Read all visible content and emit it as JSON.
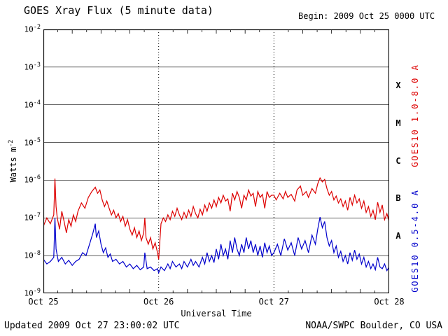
{
  "header": {
    "title": "GOES Xray Flux (5 minute data)",
    "begin": "Begin: 2009 Oct 25 0000 UTC"
  },
  "labels": {
    "ylabel_base": "Watts m",
    "ylabel_exp": "-2"
  },
  "footer": {
    "updated": "Updated 2009 Oct 27 23:00:02 UTC",
    "credit": "NOAA/SWPC Boulder, CO USA"
  },
  "chart_data": {
    "type": "line",
    "title": "GOES Xray Flux (5 minute data)",
    "xlabel": "Universal Time",
    "ylabel": "Watts m-2",
    "yscale": "log",
    "ylim": [
      1e-09,
      0.01
    ],
    "x_range_days": 3,
    "begin_time": "2009 Oct 25 0000 UTC",
    "grid": {
      "horizontal": "solid-per-decade",
      "vertical": "dotted-per-day"
    },
    "legend_position": "right-rotated",
    "xticks": [
      {
        "t": 0,
        "label": "Oct 25"
      },
      {
        "t": 1,
        "label": "Oct 26"
      },
      {
        "t": 2,
        "label": "Oct 27"
      },
      {
        "t": 3,
        "label": "Oct 28"
      }
    ],
    "ytick_exponents": [
      -2,
      -3,
      -4,
      -5,
      -6,
      -7,
      -8,
      -9
    ],
    "flare_classes": [
      {
        "label": "X",
        "band_watts": [
          0.0001,
          0.001
        ]
      },
      {
        "label": "M",
        "band_watts": [
          1e-05,
          0.0001
        ]
      },
      {
        "label": "C",
        "band_watts": [
          1e-06,
          1e-05
        ]
      },
      {
        "label": "B",
        "band_watts": [
          1e-07,
          1e-06
        ]
      },
      {
        "label": "A",
        "band_watts": [
          1e-08,
          1e-07
        ]
      }
    ],
    "series": [
      {
        "name": "GOES10 1.0-8.0 A",
        "color": "#dd0000",
        "points": [
          [
            0.0,
            6e-08
          ],
          [
            0.03,
            1e-07
          ],
          [
            0.06,
            7e-08
          ],
          [
            0.09,
            1.2e-07
          ],
          [
            0.1,
            1.1e-06
          ],
          [
            0.11,
            2e-07
          ],
          [
            0.12,
            1e-07
          ],
          [
            0.14,
            5e-08
          ],
          [
            0.16,
            1.5e-07
          ],
          [
            0.18,
            8e-08
          ],
          [
            0.2,
            4e-08
          ],
          [
            0.22,
            9e-08
          ],
          [
            0.24,
            6e-08
          ],
          [
            0.26,
            1.2e-07
          ],
          [
            0.28,
            8e-08
          ],
          [
            0.3,
            1.5e-07
          ],
          [
            0.33,
            2.5e-07
          ],
          [
            0.36,
            1.8e-07
          ],
          [
            0.39,
            3.5e-07
          ],
          [
            0.42,
            5e-07
          ],
          [
            0.45,
            6.5e-07
          ],
          [
            0.47,
            4.5e-07
          ],
          [
            0.49,
            5.5e-07
          ],
          [
            0.51,
            3e-07
          ],
          [
            0.53,
            2e-07
          ],
          [
            0.55,
            2.8e-07
          ],
          [
            0.57,
            1.8e-07
          ],
          [
            0.59,
            1.2e-07
          ],
          [
            0.61,
            1.6e-07
          ],
          [
            0.63,
            1e-07
          ],
          [
            0.65,
            1.3e-07
          ],
          [
            0.67,
            8e-08
          ],
          [
            0.69,
            1.1e-07
          ],
          [
            0.71,
            6e-08
          ],
          [
            0.73,
            9e-08
          ],
          [
            0.75,
            5e-08
          ],
          [
            0.77,
            3.5e-08
          ],
          [
            0.79,
            5.5e-08
          ],
          [
            0.81,
            3e-08
          ],
          [
            0.83,
            4.5e-08
          ],
          [
            0.85,
            2.5e-08
          ],
          [
            0.87,
            4e-08
          ],
          [
            0.88,
            1e-07
          ],
          [
            0.89,
            3e-08
          ],
          [
            0.91,
            2e-08
          ],
          [
            0.93,
            3e-08
          ],
          [
            0.95,
            1.5e-08
          ],
          [
            0.97,
            2.2e-08
          ],
          [
            0.99,
            1.2e-08
          ],
          [
            1.0,
            8e-09
          ],
          [
            1.02,
            7e-08
          ],
          [
            1.04,
            1e-07
          ],
          [
            1.06,
            8e-08
          ],
          [
            1.08,
            1.2e-07
          ],
          [
            1.1,
            9e-08
          ],
          [
            1.12,
            1.5e-07
          ],
          [
            1.14,
            1.1e-07
          ],
          [
            1.16,
            1.8e-07
          ],
          [
            1.18,
            1.2e-07
          ],
          [
            1.2,
            9e-08
          ],
          [
            1.22,
            1.4e-07
          ],
          [
            1.24,
            1e-07
          ],
          [
            1.26,
            1.6e-07
          ],
          [
            1.28,
            1.1e-07
          ],
          [
            1.3,
            2e-07
          ],
          [
            1.32,
            1.3e-07
          ],
          [
            1.34,
            1e-07
          ],
          [
            1.36,
            1.7e-07
          ],
          [
            1.38,
            1.2e-07
          ],
          [
            1.4,
            2.2e-07
          ],
          [
            1.42,
            1.5e-07
          ],
          [
            1.44,
            2.5e-07
          ],
          [
            1.46,
            1.8e-07
          ],
          [
            1.48,
            3e-07
          ],
          [
            1.5,
            2e-07
          ],
          [
            1.52,
            3.5e-07
          ],
          [
            1.54,
            2.5e-07
          ],
          [
            1.56,
            4e-07
          ],
          [
            1.58,
            2.8e-07
          ],
          [
            1.6,
            3.2e-07
          ],
          [
            1.62,
            1.5e-07
          ],
          [
            1.64,
            4.5e-07
          ],
          [
            1.66,
            3e-07
          ],
          [
            1.68,
            5e-07
          ],
          [
            1.7,
            3.5e-07
          ],
          [
            1.72,
            1.8e-07
          ],
          [
            1.74,
            4e-07
          ],
          [
            1.76,
            3e-07
          ],
          [
            1.78,
            5.5e-07
          ],
          [
            1.8,
            3.8e-07
          ],
          [
            1.82,
            4.5e-07
          ],
          [
            1.84,
            2e-07
          ],
          [
            1.86,
            5e-07
          ],
          [
            1.88,
            3.5e-07
          ],
          [
            1.9,
            4.2e-07
          ],
          [
            1.92,
            1.8e-07
          ],
          [
            1.94,
            5e-07
          ],
          [
            1.96,
            3.5e-07
          ],
          [
            1.98,
            4e-07
          ],
          [
            2.0,
            4e-07
          ],
          [
            2.02,
            3e-07
          ],
          [
            2.05,
            4.5e-07
          ],
          [
            2.08,
            3.2e-07
          ],
          [
            2.1,
            5e-07
          ],
          [
            2.12,
            3.5e-07
          ],
          [
            2.15,
            4.2e-07
          ],
          [
            2.18,
            2.8e-07
          ],
          [
            2.2,
            5.5e-07
          ],
          [
            2.23,
            7e-07
          ],
          [
            2.25,
            4e-07
          ],
          [
            2.28,
            5e-07
          ],
          [
            2.3,
            3.5e-07
          ],
          [
            2.33,
            6e-07
          ],
          [
            2.36,
            4.5e-07
          ],
          [
            2.38,
            8e-07
          ],
          [
            2.4,
            1.15e-06
          ],
          [
            2.42,
            9e-07
          ],
          [
            2.44,
            1.05e-06
          ],
          [
            2.46,
            6e-07
          ],
          [
            2.48,
            4e-07
          ],
          [
            2.5,
            5e-07
          ],
          [
            2.52,
            3e-07
          ],
          [
            2.54,
            3.8e-07
          ],
          [
            2.56,
            2.5e-07
          ],
          [
            2.58,
            3.2e-07
          ],
          [
            2.6,
            2e-07
          ],
          [
            2.62,
            2.8e-07
          ],
          [
            2.64,
            1.6e-07
          ],
          [
            2.66,
            3.5e-07
          ],
          [
            2.68,
            2.2e-07
          ],
          [
            2.7,
            4e-07
          ],
          [
            2.72,
            2.5e-07
          ],
          [
            2.74,
            3.2e-07
          ],
          [
            2.76,
            1.8e-07
          ],
          [
            2.78,
            2.8e-07
          ],
          [
            2.8,
            1.4e-07
          ],
          [
            2.82,
            2e-07
          ],
          [
            2.84,
            1.1e-07
          ],
          [
            2.86,
            1.6e-07
          ],
          [
            2.88,
            9e-08
          ],
          [
            2.9,
            2.6e-07
          ],
          [
            2.92,
            1.4e-07
          ],
          [
            2.94,
            2.2e-07
          ],
          [
            2.96,
            9e-08
          ],
          [
            2.98,
            1.3e-07
          ],
          [
            3.0,
            8e-08
          ]
        ]
      },
      {
        "name": "GOES10 0.5-4.0 A",
        "color": "#0000cc",
        "points": [
          [
            0.0,
            8e-09
          ],
          [
            0.03,
            6e-09
          ],
          [
            0.06,
            7e-09
          ],
          [
            0.09,
            9e-09
          ],
          [
            0.1,
            1e-07
          ],
          [
            0.11,
            1.5e-08
          ],
          [
            0.13,
            7e-09
          ],
          [
            0.16,
            9e-09
          ],
          [
            0.19,
            6e-09
          ],
          [
            0.22,
            7.5e-09
          ],
          [
            0.25,
            5.5e-09
          ],
          [
            0.28,
            7e-09
          ],
          [
            0.31,
            8e-09
          ],
          [
            0.34,
            1.2e-08
          ],
          [
            0.37,
            1e-08
          ],
          [
            0.4,
            2e-08
          ],
          [
            0.43,
            4e-08
          ],
          [
            0.45,
            7e-08
          ],
          [
            0.46,
            3e-08
          ],
          [
            0.48,
            4.5e-08
          ],
          [
            0.5,
            2e-08
          ],
          [
            0.52,
            1.2e-08
          ],
          [
            0.54,
            1.6e-08
          ],
          [
            0.56,
            9e-09
          ],
          [
            0.58,
            1.1e-08
          ],
          [
            0.6,
            7e-09
          ],
          [
            0.63,
            8e-09
          ],
          [
            0.66,
            6e-09
          ],
          [
            0.69,
            7e-09
          ],
          [
            0.72,
            5e-09
          ],
          [
            0.75,
            6e-09
          ],
          [
            0.78,
            4.5e-09
          ],
          [
            0.81,
            5.5e-09
          ],
          [
            0.84,
            4.2e-09
          ],
          [
            0.87,
            5e-09
          ],
          [
            0.88,
            1.2e-08
          ],
          [
            0.9,
            4.5e-09
          ],
          [
            0.93,
            5e-09
          ],
          [
            0.96,
            4e-09
          ],
          [
            0.99,
            4.5e-09
          ],
          [
            1.0,
            3.5e-09
          ],
          [
            1.02,
            5e-09
          ],
          [
            1.05,
            4e-09
          ],
          [
            1.08,
            6e-09
          ],
          [
            1.1,
            4.5e-09
          ],
          [
            1.12,
            7e-09
          ],
          [
            1.15,
            5e-09
          ],
          [
            1.18,
            6e-09
          ],
          [
            1.2,
            4.5e-09
          ],
          [
            1.22,
            7e-09
          ],
          [
            1.25,
            5e-09
          ],
          [
            1.28,
            8e-09
          ],
          [
            1.3,
            5.5e-09
          ],
          [
            1.32,
            7e-09
          ],
          [
            1.35,
            5e-09
          ],
          [
            1.38,
            9e-09
          ],
          [
            1.4,
            6e-09
          ],
          [
            1.42,
            1.2e-08
          ],
          [
            1.44,
            7e-09
          ],
          [
            1.46,
            1e-08
          ],
          [
            1.48,
            6.5e-09
          ],
          [
            1.5,
            1.5e-08
          ],
          [
            1.52,
            8e-09
          ],
          [
            1.54,
            2e-08
          ],
          [
            1.56,
            1e-08
          ],
          [
            1.58,
            1.5e-08
          ],
          [
            1.6,
            8e-09
          ],
          [
            1.62,
            2.5e-08
          ],
          [
            1.64,
            1.2e-08
          ],
          [
            1.66,
            3e-08
          ],
          [
            1.68,
            1.5e-08
          ],
          [
            1.7,
            1e-08
          ],
          [
            1.72,
            2e-08
          ],
          [
            1.74,
            1.2e-08
          ],
          [
            1.76,
            3e-08
          ],
          [
            1.78,
            1.5e-08
          ],
          [
            1.8,
            2.5e-08
          ],
          [
            1.82,
            1.2e-08
          ],
          [
            1.84,
            2e-08
          ],
          [
            1.86,
            1e-08
          ],
          [
            1.88,
            1.8e-08
          ],
          [
            1.9,
            9e-09
          ],
          [
            1.92,
            2.2e-08
          ],
          [
            1.94,
            1.2e-08
          ],
          [
            1.96,
            1.8e-08
          ],
          [
            1.98,
            1e-08
          ],
          [
            2.0,
            1.2e-08
          ],
          [
            2.03,
            2e-08
          ],
          [
            2.06,
            1e-08
          ],
          [
            2.09,
            2.8e-08
          ],
          [
            2.12,
            1.4e-08
          ],
          [
            2.15,
            2.2e-08
          ],
          [
            2.18,
            1e-08
          ],
          [
            2.21,
            3e-08
          ],
          [
            2.24,
            1.5e-08
          ],
          [
            2.27,
            2.5e-08
          ],
          [
            2.3,
            1.2e-08
          ],
          [
            2.33,
            3.5e-08
          ],
          [
            2.36,
            2e-08
          ],
          [
            2.38,
            5e-08
          ],
          [
            2.4,
            1.05e-07
          ],
          [
            2.42,
            5.5e-08
          ],
          [
            2.44,
            8e-08
          ],
          [
            2.46,
            3e-08
          ],
          [
            2.48,
            1.8e-08
          ],
          [
            2.5,
            2.5e-08
          ],
          [
            2.52,
            1.2e-08
          ],
          [
            2.54,
            1.8e-08
          ],
          [
            2.56,
            9e-09
          ],
          [
            2.58,
            1.3e-08
          ],
          [
            2.6,
            7e-09
          ],
          [
            2.62,
            1e-08
          ],
          [
            2.64,
            6e-09
          ],
          [
            2.66,
            1.2e-08
          ],
          [
            2.68,
            7.5e-09
          ],
          [
            2.7,
            1.4e-08
          ],
          [
            2.72,
            8e-09
          ],
          [
            2.74,
            1.1e-08
          ],
          [
            2.76,
            6e-09
          ],
          [
            2.78,
            9e-09
          ],
          [
            2.8,
            5e-09
          ],
          [
            2.82,
            7e-09
          ],
          [
            2.84,
            4.5e-09
          ],
          [
            2.86,
            6e-09
          ],
          [
            2.88,
            4.2e-09
          ],
          [
            2.9,
            9e-09
          ],
          [
            2.92,
            5e-09
          ],
          [
            2.94,
            4.5e-09
          ],
          [
            2.96,
            6e-09
          ],
          [
            2.98,
            4e-09
          ],
          [
            3.0,
            5e-09
          ]
        ]
      }
    ]
  }
}
